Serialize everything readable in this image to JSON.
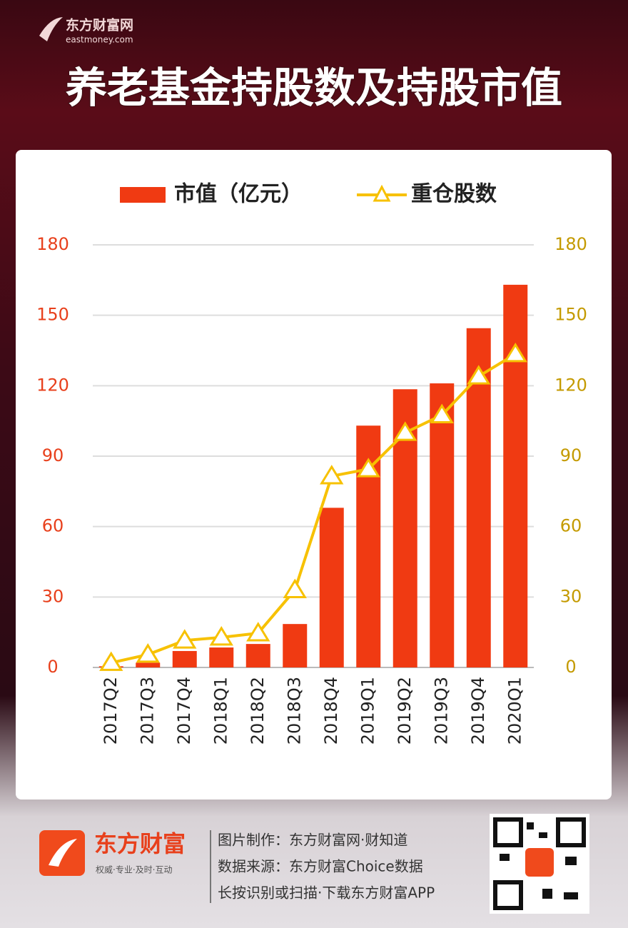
{
  "header": {
    "brand": "东方财富网",
    "brand_url": "eastmoney.com",
    "title": "养老基金持股数及持股市值"
  },
  "chart_data": {
    "type": "bar-line",
    "categories": [
      "2017Q2",
      "2017Q3",
      "2017Q4",
      "2018Q1",
      "2018Q2",
      "2018Q3",
      "2018Q4",
      "2019Q1",
      "2019Q2",
      "2019Q3",
      "2019Q4",
      "2020Q1"
    ],
    "series": [
      {
        "name": "市值（亿元）",
        "type": "bar",
        "color": "#f03a12",
        "values": [
          0.5,
          2,
          7,
          8.5,
          10,
          18.5,
          68,
          103,
          118.5,
          121,
          144.5,
          163
        ]
      },
      {
        "name": "重仓股数",
        "type": "line",
        "axis": "y2",
        "color": "#f7c100",
        "values": [
          2,
          5.5,
          11.5,
          12.8,
          14.6,
          33,
          81.5,
          84.5,
          100,
          107.5,
          124,
          133.5
        ]
      }
    ],
    "ylim": [
      0,
      180
    ],
    "yticks": [
      0,
      30,
      60,
      90,
      120,
      150,
      180
    ],
    "y2lim": [
      0,
      180
    ],
    "y2ticks": [
      0,
      30,
      60,
      90,
      120,
      150,
      180
    ],
    "grid": true,
    "legend": "top"
  },
  "footer": {
    "logo": "东方财富",
    "slogan": "权威·专业·及时·互动",
    "lines": [
      "图片制作：东方财富网·财知道",
      "数据来源：东方财富Choice数据",
      "长按识别或扫描·下载东方财富APP"
    ]
  }
}
